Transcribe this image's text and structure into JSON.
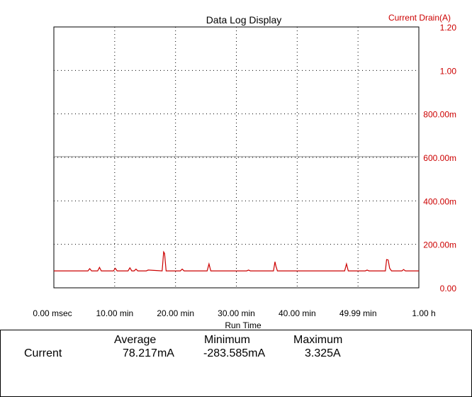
{
  "chart_data": {
    "type": "line",
    "title": "Data Log Display",
    "ylabel": "Current Drain(A)",
    "xlabel": "Run Time",
    "x_tick_labels": [
      "0.00 msec",
      "10.00 min",
      "20.00 min",
      "30.00 min",
      "40.00 min",
      "49.99 min",
      "1.00 h"
    ],
    "y_tick_labels": [
      "0.00",
      "200.00m",
      "400.00m",
      "600.00m",
      "800.00m",
      "1.00",
      "1.20"
    ],
    "ylim": [
      0,
      1.2
    ],
    "xlim_min": [
      0,
      60
    ],
    "grid": true,
    "series": [
      {
        "color": "#cc0000",
        "x": [
          0,
          5.6,
          5.9,
          6.2,
          7.2,
          7.5,
          7.8,
          9.8,
          10.1,
          10.4,
          12.2,
          12.5,
          12.8,
          13.2,
          13.5,
          13.8,
          15.2,
          15.5,
          17.8,
          18.05,
          18.2,
          18.45,
          18.7,
          20.8,
          21.1,
          21.4,
          25.2,
          25.5,
          25.8,
          31.7,
          32.0,
          32.3,
          36.1,
          36.35,
          36.5,
          36.75,
          47.8,
          48.1,
          48.4,
          51.2,
          51.5,
          51.8,
          54.5,
          54.7,
          54.95,
          55.2,
          55.5,
          57.2,
          57.5,
          57.8,
          60
        ],
        "values": [
          0.078,
          0.078,
          0.088,
          0.078,
          0.078,
          0.094,
          0.078,
          0.078,
          0.09,
          0.078,
          0.078,
          0.092,
          0.078,
          0.078,
          0.086,
          0.078,
          0.078,
          0.082,
          0.078,
          0.165,
          0.158,
          0.078,
          0.078,
          0.078,
          0.086,
          0.078,
          0.078,
          0.11,
          0.078,
          0.078,
          0.082,
          0.078,
          0.078,
          0.12,
          0.1,
          0.078,
          0.078,
          0.11,
          0.078,
          0.078,
          0.082,
          0.078,
          0.078,
          0.13,
          0.128,
          0.09,
          0.078,
          0.078,
          0.084,
          0.078,
          0.078
        ]
      }
    ]
  },
  "stats": {
    "headers": [
      "Average",
      "Minimum",
      "Maximum"
    ],
    "row_label": "Current",
    "values": [
      "78.217mA",
      "-283.585mA",
      "3.325A"
    ]
  }
}
